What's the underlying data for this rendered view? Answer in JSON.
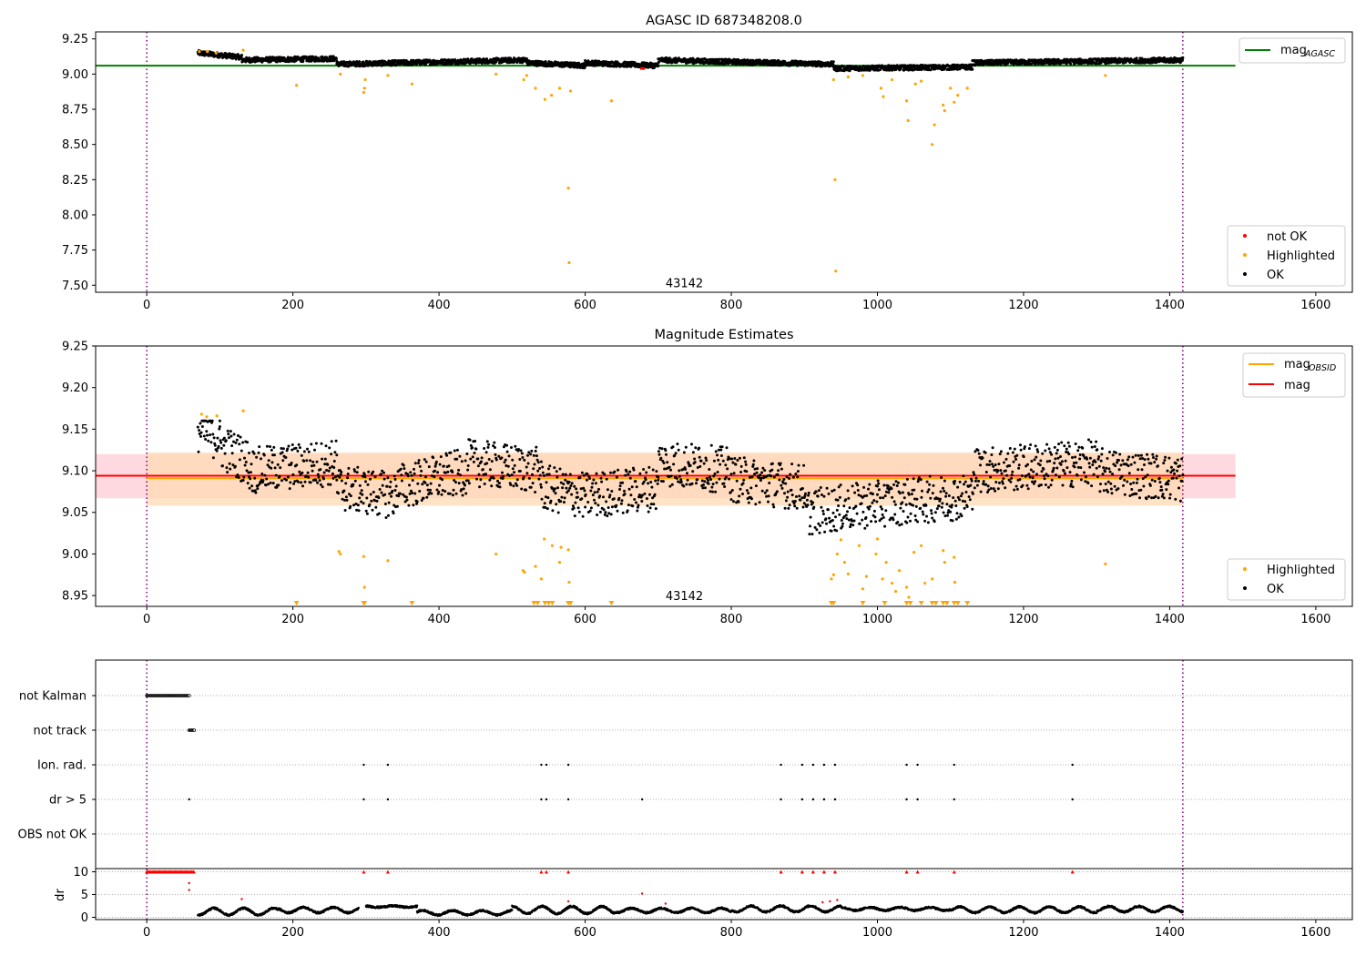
{
  "figure": {
    "colors": {
      "ok": "#000000",
      "highlighted": "#ffa500",
      "not_ok": "#ff0000",
      "mag_agasc_line": "#008000",
      "mag_line": "#ff0000",
      "mag_obsid_line": "#ffa500",
      "vline": "#800080",
      "band_mag": "#ffc0cb",
      "band_obsid": "#ffd9b3"
    }
  },
  "chart_data": [
    {
      "type": "scatter",
      "title": "AGASC ID 687348208.0",
      "xlim": [
        -70,
        1650
      ],
      "ylim": [
        7.45,
        9.3
      ],
      "xticks": [
        0,
        200,
        400,
        600,
        800,
        1000,
        1200,
        1400,
        1600
      ],
      "xtick_labels": [
        "0",
        "200",
        "400",
        "600",
        "800",
        "1000",
        "1200",
        "1400",
        "1600"
      ],
      "yticks": [
        7.5,
        7.75,
        8.0,
        8.25,
        8.5,
        8.75,
        9.0,
        9.25
      ],
      "ytick_labels": [
        "7.50",
        "7.75",
        "8.00",
        "8.25",
        "8.50",
        "8.75",
        "9.00",
        "9.25"
      ],
      "grid": false,
      "legend_position": [
        "top-right",
        "bottom-right"
      ],
      "legend_top": [
        {
          "label": "mag",
          "sub": "AGASC",
          "kind": "line",
          "color": "#008000"
        }
      ],
      "legend_bottom": [
        {
          "label": "not OK",
          "kind": "dot",
          "color": "#ff0000"
        },
        {
          "label": "Highlighted",
          "kind": "dot",
          "color": "#ffa500"
        },
        {
          "label": "OK",
          "kind": "dot",
          "color": "#000000"
        }
      ],
      "mag_agasc": 9.06,
      "mag_agasc_x_range": [
        -70,
        1490
      ],
      "vlines": [
        0,
        1418
      ],
      "annotation": {
        "text": "43142",
        "x": 710,
        "y": 7.5
      },
      "ok_segments": [
        {
          "x": [
            70,
            130
          ],
          "y": [
            9.15,
            9.12
          ]
        },
        {
          "x": [
            130,
            260
          ],
          "y": [
            9.1,
            9.11
          ]
        },
        {
          "x": [
            260,
            520
          ],
          "y": [
            9.07,
            9.1
          ]
        },
        {
          "x": [
            520,
            600
          ],
          "y": [
            9.08,
            9.06
          ]
        },
        {
          "x": [
            600,
            700
          ],
          "y": [
            9.08,
            9.06
          ]
        },
        {
          "x": [
            700,
            940
          ],
          "y": [
            9.1,
            9.07
          ]
        },
        {
          "x": [
            940,
            1130
          ],
          "y": [
            9.04,
            9.05
          ]
        },
        {
          "x": [
            1130,
            1418
          ],
          "y": [
            9.08,
            9.1
          ]
        }
      ],
      "highlighted_points": [
        [
          72,
          9.16
        ],
        [
          83,
          9.16
        ],
        [
          95,
          9.15
        ],
        [
          132,
          9.17
        ],
        [
          205,
          8.92
        ],
        [
          265,
          9.0
        ],
        [
          297,
          8.87
        ],
        [
          298,
          8.9
        ],
        [
          299,
          8.96
        ],
        [
          330,
          8.99
        ],
        [
          363,
          8.93
        ],
        [
          478,
          9.0
        ],
        [
          516,
          8.96
        ],
        [
          520,
          8.99
        ],
        [
          532,
          8.9
        ],
        [
          545,
          8.82
        ],
        [
          554,
          8.85
        ],
        [
          565,
          8.9
        ],
        [
          577,
          8.19
        ],
        [
          578,
          7.66
        ],
        [
          580,
          8.88
        ],
        [
          636,
          8.81
        ],
        [
          940,
          8.96
        ],
        [
          942,
          8.25
        ],
        [
          943,
          7.6
        ],
        [
          960,
          8.98
        ],
        [
          980,
          8.99
        ],
        [
          1005,
          8.9
        ],
        [
          1008,
          8.84
        ],
        [
          1020,
          8.96
        ],
        [
          1040,
          8.81
        ],
        [
          1042,
          8.67
        ],
        [
          1052,
          8.93
        ],
        [
          1060,
          8.95
        ],
        [
          1075,
          8.5
        ],
        [
          1078,
          8.64
        ],
        [
          1090,
          8.78
        ],
        [
          1092,
          8.74
        ],
        [
          1100,
          8.9
        ],
        [
          1105,
          8.8
        ],
        [
          1110,
          8.85
        ],
        [
          1123,
          8.9
        ],
        [
          1312,
          8.99
        ]
      ],
      "not_ok_points": [
        [
          677,
          9.04
        ],
        [
          680,
          9.04
        ]
      ]
    },
    {
      "type": "scatter",
      "title": "Magnitude Estimates",
      "xlim": [
        -70,
        1650
      ],
      "ylim": [
        8.937,
        9.25
      ],
      "xticks": [
        0,
        200,
        400,
        600,
        800,
        1000,
        1200,
        1400,
        1600
      ],
      "xtick_labels": [
        "0",
        "200",
        "400",
        "600",
        "800",
        "1000",
        "1200",
        "1400",
        "1600"
      ],
      "yticks": [
        8.95,
        9.0,
        9.05,
        9.1,
        9.15,
        9.2,
        9.25
      ],
      "ytick_labels": [
        "8.95",
        "9.00",
        "9.05",
        "9.10",
        "9.15",
        "9.20",
        "9.25"
      ],
      "grid": false,
      "legend_position": [
        "top-right",
        "bottom-right"
      ],
      "legend_top": [
        {
          "label": "mag",
          "sub": "OBSID",
          "kind": "line",
          "color": "#ffa500"
        },
        {
          "label": "mag",
          "sub": "",
          "kind": "line",
          "color": "#ff0000"
        }
      ],
      "legend_bottom": [
        {
          "label": "Highlighted",
          "kind": "dot",
          "color": "#ffa500"
        },
        {
          "label": "OK",
          "kind": "dot",
          "color": "#000000"
        }
      ],
      "mag": 9.094,
      "mag_band": [
        9.067,
        9.12
      ],
      "mag_band_x_range": [
        -70,
        1490
      ],
      "mag_obsid": 9.091,
      "mag_obsid_band": [
        9.058,
        9.122
      ],
      "mag_obsid_x_range": [
        0,
        1418
      ],
      "vlines": [
        0,
        1418
      ],
      "annotation": {
        "text": "43142",
        "x": 710,
        "y": 8.95
      },
      "ok_segments": [
        {
          "x": [
            70,
            100
          ],
          "y": [
            9.15,
            9.14
          ]
        },
        {
          "x": [
            100,
            140
          ],
          "y": [
            9.13,
            9.11
          ]
        },
        {
          "x": [
            140,
            260
          ],
          "y": [
            9.1,
            9.11
          ]
        },
        {
          "x": [
            260,
            340
          ],
          "y": [
            9.08,
            9.07
          ]
        },
        {
          "x": [
            340,
            440
          ],
          "y": [
            9.08,
            9.1
          ]
        },
        {
          "x": [
            440,
            540
          ],
          "y": [
            9.11,
            9.1
          ]
        },
        {
          "x": [
            540,
            600
          ],
          "y": [
            9.08,
            9.07
          ]
        },
        {
          "x": [
            600,
            700
          ],
          "y": [
            9.07,
            9.08
          ]
        },
        {
          "x": [
            700,
            800
          ],
          "y": [
            9.11,
            9.1
          ]
        },
        {
          "x": [
            800,
            900
          ],
          "y": [
            9.09,
            9.08
          ]
        },
        {
          "x": [
            900,
            1000
          ],
          "y": [
            9.05,
            9.06
          ]
        },
        {
          "x": [
            1000,
            1130
          ],
          "y": [
            9.06,
            9.07
          ]
        },
        {
          "x": [
            1130,
            1300
          ],
          "y": [
            9.1,
            9.11
          ]
        },
        {
          "x": [
            1300,
            1418
          ],
          "y": [
            9.1,
            9.09
          ]
        }
      ],
      "highlighted_points": [
        [
          75,
          9.168
        ],
        [
          82,
          9.165
        ],
        [
          96,
          9.166
        ],
        [
          132,
          9.172
        ],
        [
          263,
          9.003
        ],
        [
          265,
          9.0
        ],
        [
          297,
          8.997
        ],
        [
          298,
          8.96
        ],
        [
          330,
          8.992
        ],
        [
          478,
          9.0
        ],
        [
          515,
          8.98
        ],
        [
          517,
          8.978
        ],
        [
          532,
          8.985
        ],
        [
          540,
          8.97
        ],
        [
          544,
          9.018
        ],
        [
          555,
          9.01
        ],
        [
          565,
          8.99
        ],
        [
          567,
          9.008
        ],
        [
          577,
          9.005
        ],
        [
          578,
          8.966
        ],
        [
          937,
          8.97
        ],
        [
          940,
          8.975
        ],
        [
          945,
          9.0
        ],
        [
          950,
          9.017
        ],
        [
          955,
          8.99
        ],
        [
          960,
          8.976
        ],
        [
          975,
          9.01
        ],
        [
          980,
          8.958
        ],
        [
          985,
          8.973
        ],
        [
          998,
          9.0
        ],
        [
          1000,
          9.018
        ],
        [
          1007,
          8.97
        ],
        [
          1012,
          8.99
        ],
        [
          1020,
          8.965
        ],
        [
          1025,
          8.955
        ],
        [
          1030,
          8.98
        ],
        [
          1040,
          8.96
        ],
        [
          1043,
          8.948
        ],
        [
          1050,
          9.002
        ],
        [
          1060,
          9.01
        ],
        [
          1065,
          8.965
        ],
        [
          1075,
          8.97
        ],
        [
          1090,
          9.004
        ],
        [
          1092,
          8.99
        ],
        [
          1105,
          8.996
        ],
        [
          1106,
          8.966
        ],
        [
          1312,
          8.988
        ]
      ],
      "lower_limit_markers_x": [
        205,
        297,
        298,
        363,
        530,
        535,
        545,
        550,
        555,
        577,
        580,
        636,
        937,
        940,
        980,
        1010,
        1040,
        1045,
        1060,
        1075,
        1080,
        1090,
        1095,
        1105,
        1110,
        1123
      ]
    },
    {
      "type": "scatter",
      "title": "",
      "xlim": [
        -70,
        1650
      ],
      "xticks": [
        0,
        200,
        400,
        600,
        800,
        1000,
        1200,
        1400,
        1600
      ],
      "xtick_labels": [
        "0",
        "200",
        "400",
        "600",
        "800",
        "1000",
        "1200",
        "1400",
        "1600"
      ],
      "grid": true,
      "vlines": [
        0,
        1418
      ],
      "flags": [
        {
          "label": "not Kalman",
          "ranges": [
            [
              0,
              58
            ]
          ],
          "points": []
        },
        {
          "label": "not track",
          "ranges": [
            [
              58,
              65
            ]
          ],
          "points": []
        },
        {
          "label": "Ion. rad.",
          "ranges": [],
          "points": [
            297,
            330,
            540,
            547,
            577,
            868,
            897,
            912,
            927,
            942,
            1040,
            1055,
            1105,
            1267
          ]
        },
        {
          "label": "dr > 5",
          "ranges": [],
          "points": [
            58,
            297,
            330,
            540,
            547,
            577,
            678,
            868,
            897,
            912,
            927,
            942,
            1040,
            1055,
            1105,
            1267
          ]
        },
        {
          "label": "OBS not OK",
          "ranges": [],
          "points": []
        }
      ],
      "dr_ylabel": "dr",
      "dr_yticks": [
        0,
        5,
        10
      ],
      "dr_ytick_labels": [
        "0",
        "5",
        "10"
      ],
      "dr_ylim": [
        -0.5,
        10.7
      ],
      "dr_clipped_markers_x": [
        297,
        330,
        540,
        547,
        577,
        868,
        897,
        912,
        927,
        942,
        1040,
        1055,
        1105,
        1267
      ],
      "dr_clipped_range": [
        0,
        65
      ],
      "dr_not_ok_points": [
        [
          58,
          7.5
        ],
        [
          58,
          6
        ],
        [
          130,
          4
        ],
        [
          577,
          3.5
        ],
        [
          678,
          5.2
        ],
        [
          710,
          3
        ],
        [
          925,
          3.3
        ],
        [
          935,
          3.5
        ],
        [
          945,
          3.8
        ]
      ],
      "dr_ok_segments": [
        {
          "x": [
            70,
            180
          ],
          "y": [
            0.5,
            2.0
          ]
        },
        {
          "x": [
            180,
            290
          ],
          "y": [
            1.0,
            2.2
          ]
        },
        {
          "x": [
            300,
            370
          ],
          "y": [
            2.2,
            2.5
          ]
        },
        {
          "x": [
            370,
            500
          ],
          "y": [
            0.5,
            1.5
          ]
        },
        {
          "x": [
            500,
            640
          ],
          "y": [
            0.8,
            2.4
          ]
        },
        {
          "x": [
            640,
            800
          ],
          "y": [
            1.0,
            2.0
          ]
        },
        {
          "x": [
            800,
            950
          ],
          "y": [
            1.2,
            2.5
          ]
        },
        {
          "x": [
            950,
            1100
          ],
          "y": [
            1.5,
            2.2
          ]
        },
        {
          "x": [
            1100,
            1300
          ],
          "y": [
            1.0,
            2.3
          ]
        },
        {
          "x": [
            1300,
            1418
          ],
          "y": [
            1.2,
            2.4
          ]
        }
      ]
    }
  ]
}
